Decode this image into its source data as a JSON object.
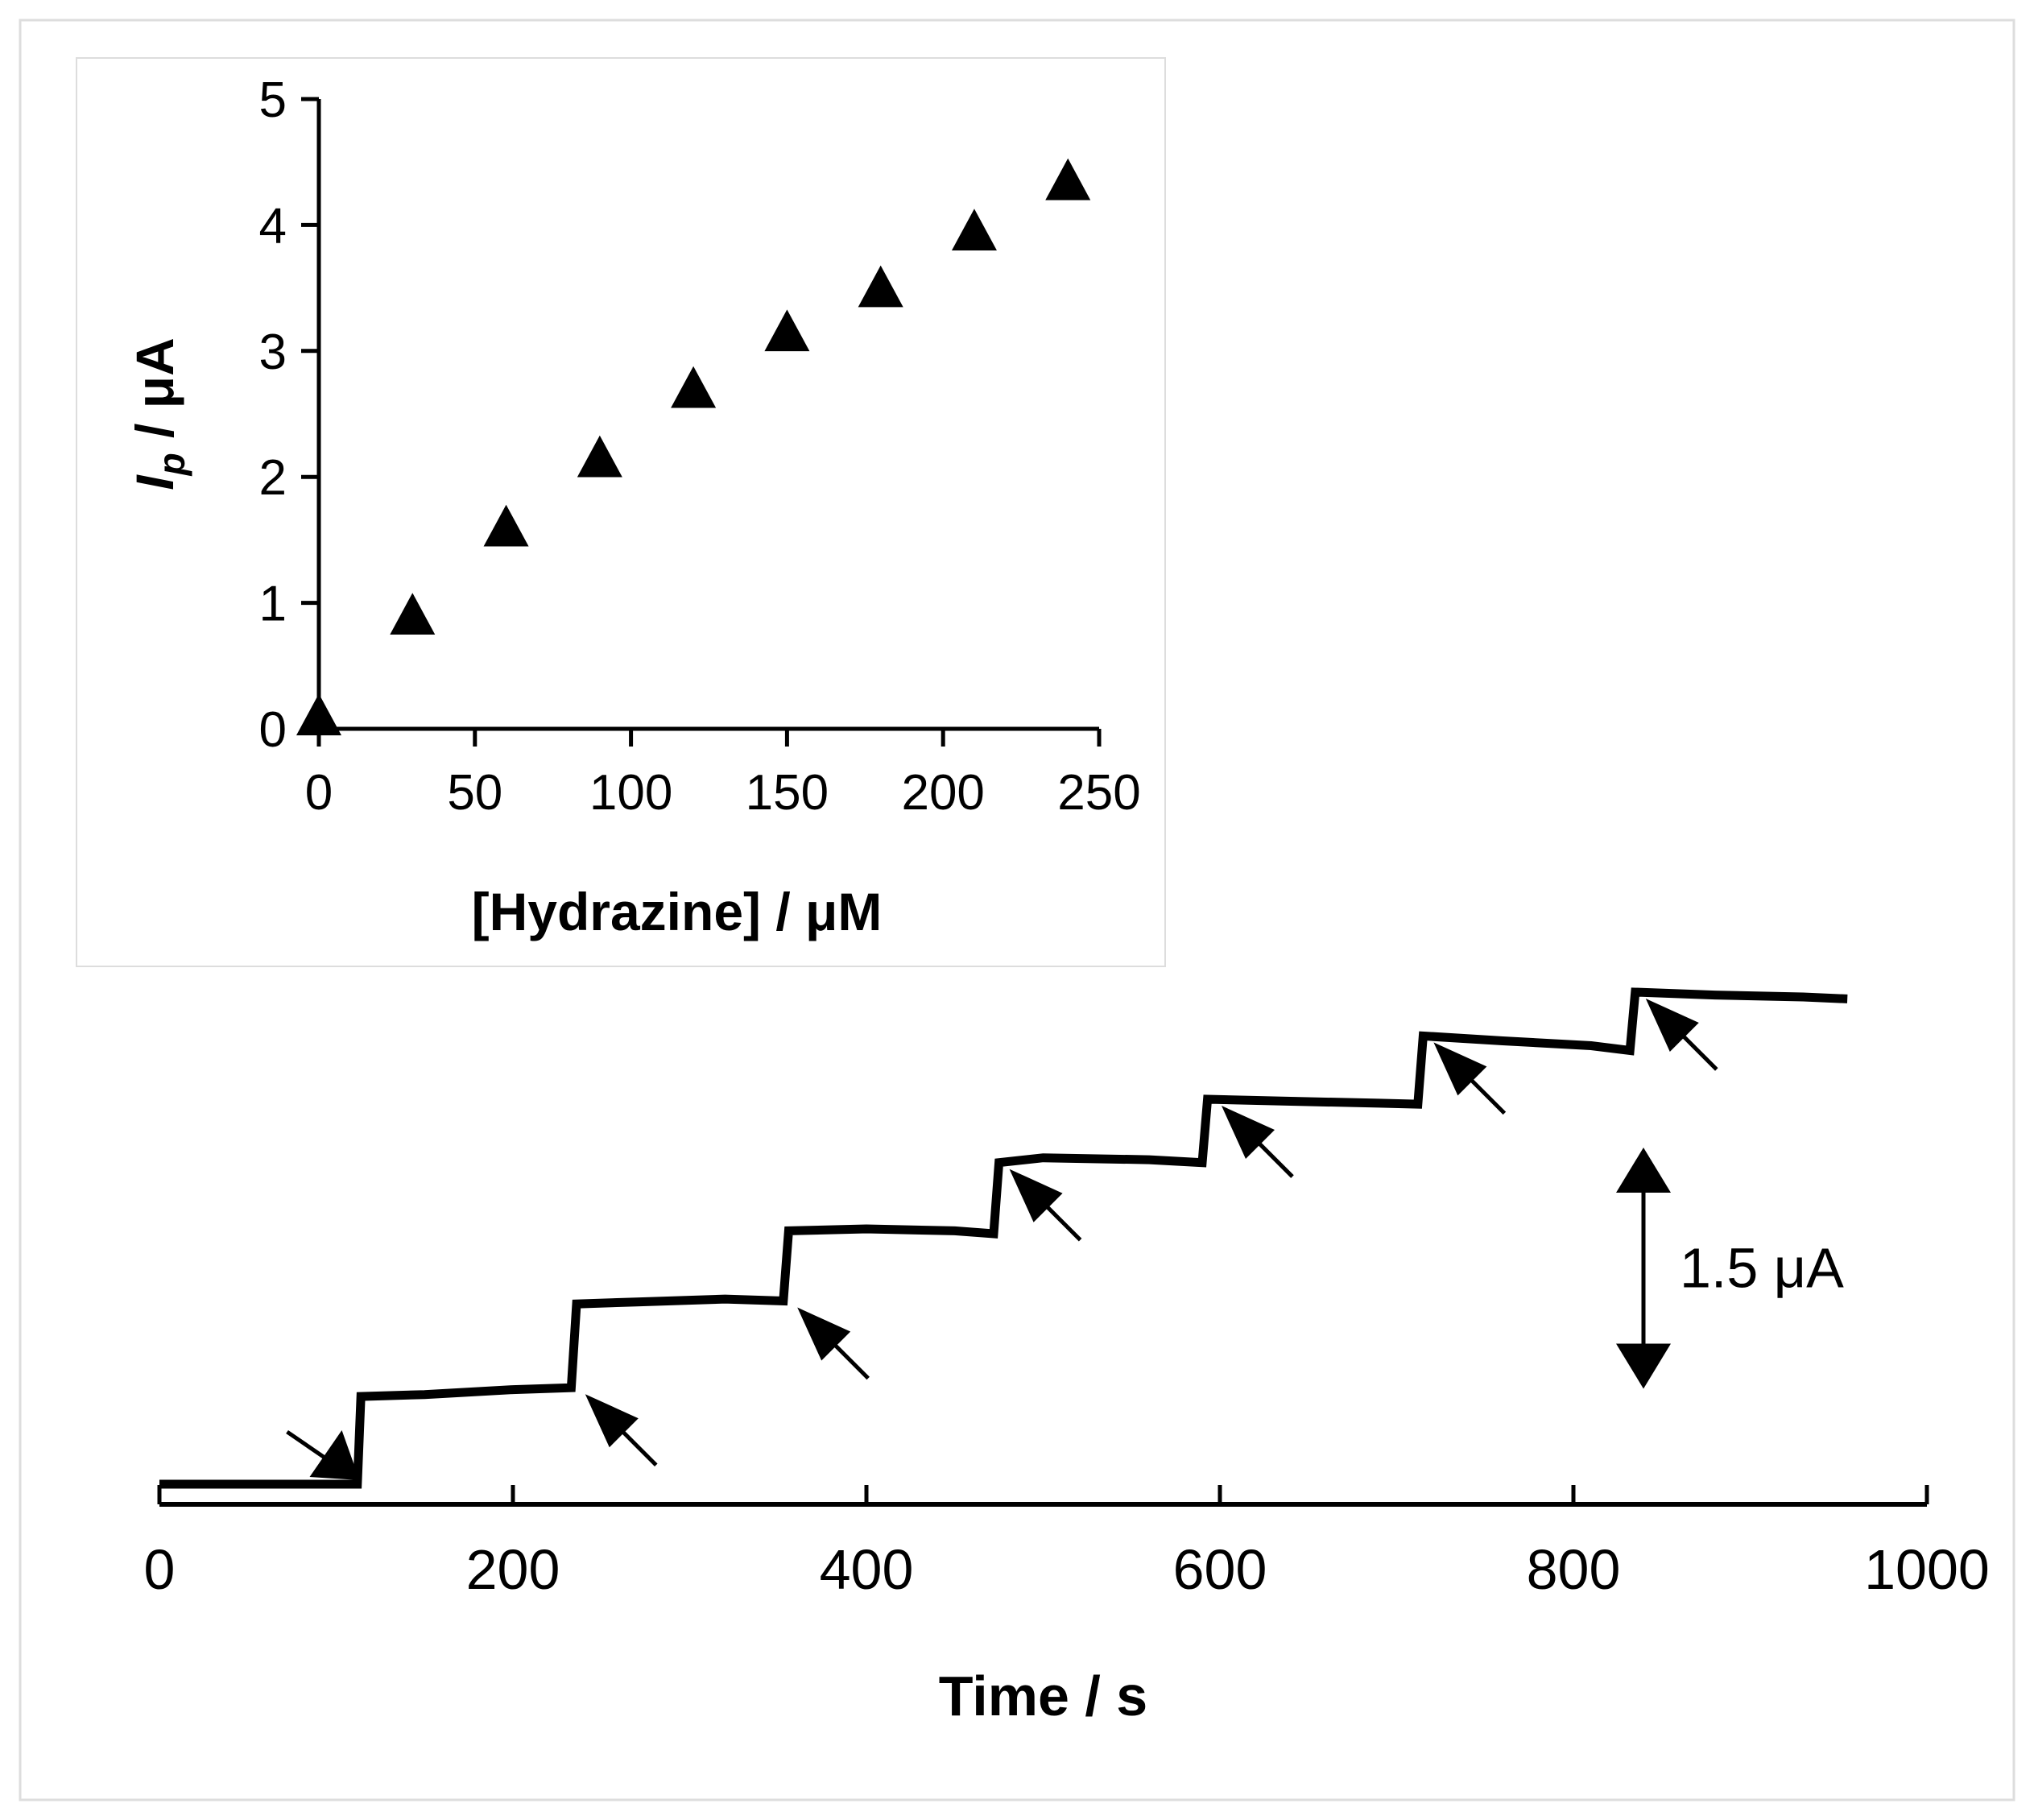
{
  "chart_data": [
    {
      "id": "main",
      "type": "line",
      "title": "",
      "xlabel": "Time / s",
      "ylabel": "",
      "xlim": [
        0,
        1000
      ],
      "xticks": [
        0,
        200,
        400,
        600,
        800,
        1000
      ],
      "xtick_labels": [
        "0",
        "200",
        "400",
        "600",
        "800",
        "1000"
      ],
      "ylim": [
        0,
        7.5
      ],
      "series": [
        {
          "name": "amperometric response",
          "color": "#000000",
          "points": [
            [
              0,
              0.0
            ],
            [
              112,
              0.0
            ],
            [
              114,
              0.9
            ],
            [
              150,
              0.92
            ],
            [
              200,
              0.97
            ],
            [
              233,
              0.99
            ],
            [
              236,
              1.85
            ],
            [
              270,
              1.87
            ],
            [
              320,
              1.9
            ],
            [
              353,
              1.88
            ],
            [
              356,
              2.6
            ],
            [
              400,
              2.62
            ],
            [
              450,
              2.6
            ],
            [
              472,
              2.57
            ],
            [
              475,
              3.3
            ],
            [
              500,
              3.35
            ],
            [
              560,
              3.33
            ],
            [
              590,
              3.3
            ],
            [
              593,
              3.95
            ],
            [
              640,
              3.93
            ],
            [
              690,
              3.91
            ],
            [
              712,
              3.9
            ],
            [
              715,
              4.6
            ],
            [
              760,
              4.55
            ],
            [
              810,
              4.5
            ],
            [
              832,
              4.45
            ],
            [
              835,
              5.05
            ],
            [
              880,
              5.02
            ],
            [
              930,
              5.0
            ],
            [
              955,
              4.98
            ]
          ]
        }
      ],
      "annotations": {
        "addition_arrows_at_s": [
          95,
          240,
          360,
          480,
          600,
          720,
          840
        ],
        "scale_bar_value": 1.5,
        "scale_bar_label": "1.5 μA"
      }
    },
    {
      "id": "inset",
      "type": "scatter",
      "title": "",
      "xlabel": "[Hydrazine] / μM",
      "ylabel_main": "I",
      "ylabel_sub": "p",
      "ylabel_rest": " / μA",
      "xlim": [
        0,
        250
      ],
      "ylim": [
        0,
        5
      ],
      "xticks": [
        0,
        50,
        100,
        150,
        200,
        250
      ],
      "xtick_labels": [
        "0",
        "50",
        "100",
        "150",
        "200",
        "250"
      ],
      "yticks": [
        0,
        1,
        2,
        3,
        4,
        5
      ],
      "ytick_labels": [
        "0",
        "1",
        "2",
        "3",
        "4",
        "5"
      ],
      "marker": "triangle",
      "x": [
        0,
        30,
        60,
        90,
        120,
        150,
        180,
        210,
        240
      ],
      "y": [
        0.1,
        0.9,
        1.6,
        2.15,
        2.7,
        3.15,
        3.5,
        3.95,
        4.35
      ]
    }
  ]
}
